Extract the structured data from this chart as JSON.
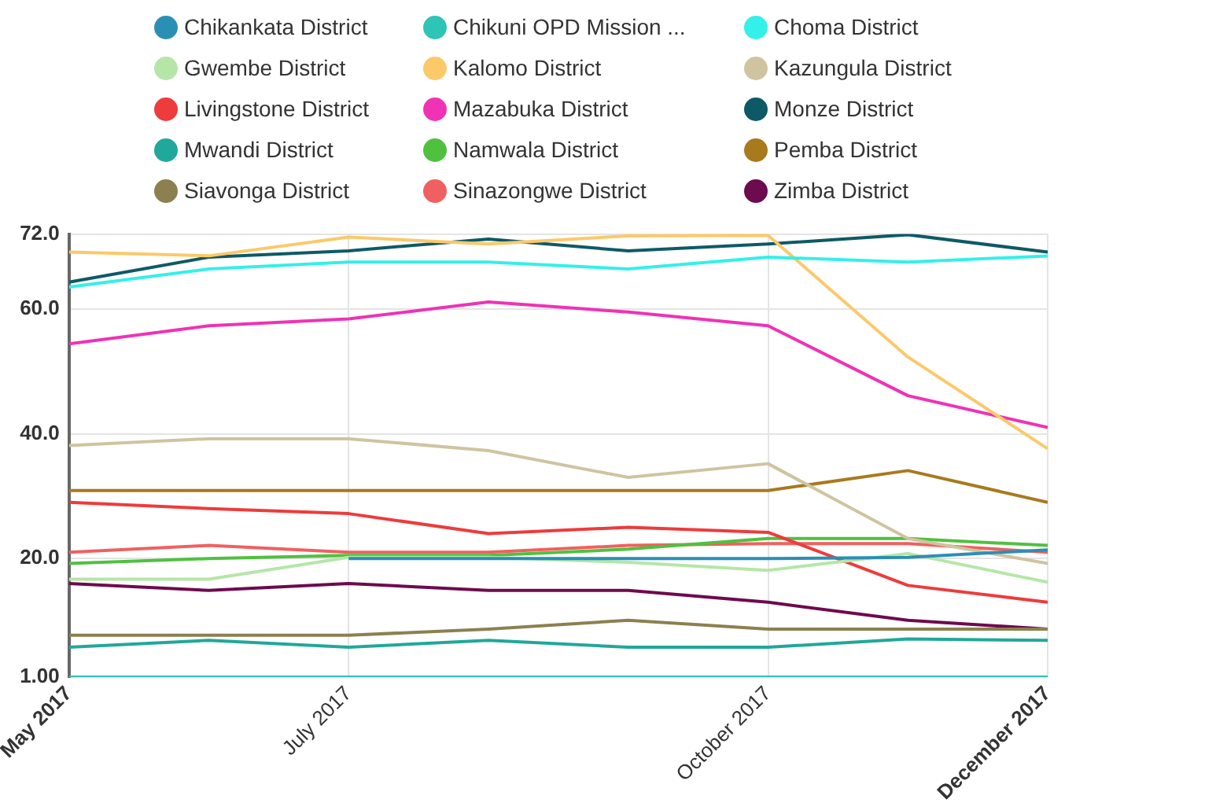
{
  "chart_data": {
    "type": "line",
    "x": [
      "2017-05",
      "2017-06",
      "2017-07",
      "2017-08",
      "2017-09",
      "2017-10",
      "2017-11",
      "2017-12"
    ],
    "xlim": [
      "2017-05",
      "2017-12"
    ],
    "xticks": [
      {
        "value": "2017-05",
        "label": "May 2017"
      },
      {
        "value": "2017-07",
        "label": "July 2017"
      },
      {
        "value": "2017-10",
        "label": "October 2017"
      },
      {
        "value": "2017-12",
        "label": "December 2017"
      }
    ],
    "ylim": [
      1,
      72
    ],
    "yticks": [
      {
        "value": 1,
        "label": "1.00"
      },
      {
        "value": 20,
        "label": "20.0"
      },
      {
        "value": 40,
        "label": "40.0"
      },
      {
        "value": 60,
        "label": "60.0"
      },
      {
        "value": 72,
        "label": "72.0"
      }
    ],
    "grid": true,
    "legend": "top",
    "marker": "none",
    "line_style": "solid",
    "series": [
      {
        "name": "Chikankata District",
        "color": "#2a8fb5",
        "values": [
          null,
          null,
          20.0,
          20.0,
          20.0,
          20.0,
          20.2,
          21.4
        ]
      },
      {
        "name": "Chikuni OPD Mission ...",
        "color": "#2ec4b6",
        "values": [
          1,
          1,
          1,
          1,
          1,
          1,
          1,
          1
        ]
      },
      {
        "name": "Choma District",
        "color": "#33f0e8",
        "values": [
          63.5,
          66.4,
          67.5,
          67.5,
          66.4,
          68.3,
          67.5,
          68.5
        ]
      },
      {
        "name": "Gwembe District",
        "color": "#b5e6a8",
        "values": [
          16.7,
          16.7,
          20.2,
          20.2,
          19.4,
          18.1,
          20.8,
          16.2
        ]
      },
      {
        "name": "Kalomo District",
        "color": "#fbc96a",
        "values": [
          69.1,
          68.5,
          71.5,
          70.4,
          71.7,
          71.8,
          52.3,
          37.6
        ]
      },
      {
        "name": "Kazungula District",
        "color": "#cfc4a0",
        "values": [
          38.1,
          39.2,
          39.2,
          37.3,
          33.0,
          35.2,
          23.2,
          19.2
        ]
      },
      {
        "name": "Livingstone District",
        "color": "#ee3b3b",
        "values": [
          29.0,
          28.0,
          27.2,
          24.0,
          25.0,
          24.2,
          15.7,
          13.0
        ]
      },
      {
        "name": "Mazabuka District",
        "color": "#f032b4",
        "values": [
          54.4,
          57.3,
          58.4,
          61.1,
          59.5,
          57.3,
          46.1,
          41.0
        ]
      },
      {
        "name": "Monze District",
        "color": "#0d5a66",
        "values": [
          64.3,
          68.3,
          69.3,
          71.2,
          69.3,
          70.4,
          71.9,
          69.1
        ]
      },
      {
        "name": "Mwandi District",
        "color": "#20a89a",
        "values": [
          5.8,
          6.9,
          5.8,
          6.9,
          5.8,
          5.8,
          7.1,
          6.9
        ]
      },
      {
        "name": "Namwala District",
        "color": "#4fc13f",
        "values": [
          19.2,
          20.0,
          20.5,
          20.5,
          21.5,
          23.2,
          23.2,
          22.1
        ]
      },
      {
        "name": "Pemba District",
        "color": "#a87a1e",
        "values": [
          30.9,
          30.9,
          30.9,
          30.9,
          30.9,
          30.9,
          34.1,
          29.0
        ]
      },
      {
        "name": "Siavonga District",
        "color": "#8c8050",
        "values": [
          7.7,
          7.7,
          7.7,
          8.7,
          10.1,
          8.7,
          8.7,
          8.7
        ]
      },
      {
        "name": "Sinazongwe District",
        "color": "#f06060",
        "values": [
          21.0,
          22.1,
          21.0,
          21.0,
          22.1,
          22.4,
          22.4,
          21.0
        ]
      },
      {
        "name": "Zimba District",
        "color": "#6e0a4e",
        "values": [
          16.0,
          14.9,
          16.0,
          14.9,
          14.9,
          13.0,
          10.1,
          8.7
        ]
      }
    ]
  }
}
